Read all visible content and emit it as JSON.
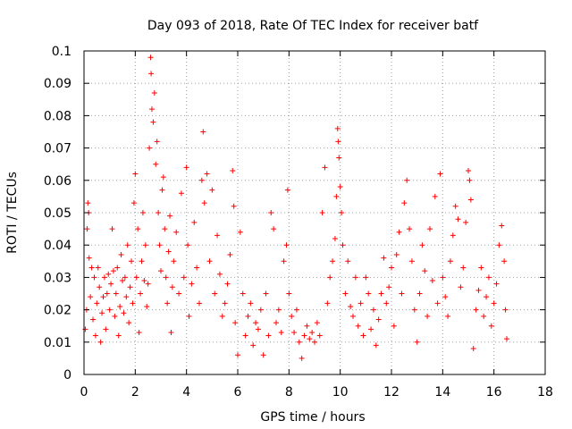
{
  "chart_data": {
    "type": "scatter",
    "title": "Day 093 of 2018, Rate Of TEC Index for receiver batf",
    "xlabel": "GPS time / hours",
    "ylabel": "ROTI / TECUs",
    "xlim": [
      0,
      18
    ],
    "ylim": [
      0,
      0.1
    ],
    "x_ticks": [
      "0",
      "2",
      "4",
      "6",
      "8",
      "10",
      "12",
      "14",
      "16",
      "18"
    ],
    "y_ticks": [
      "0",
      "0.01",
      "0.02",
      "0.03",
      "0.04",
      "0.05",
      "0.06",
      "0.07",
      "0.08",
      "0.09",
      "0.1"
    ],
    "grid": true,
    "marker": "+",
    "series_color": "#ff0000",
    "series": [
      {
        "points": [
          [
            0.05,
            0.014
          ],
          [
            0.1,
            0.02
          ],
          [
            0.12,
            0.045
          ],
          [
            0.15,
            0.053
          ],
          [
            0.18,
            0.05
          ],
          [
            0.2,
            0.036
          ],
          [
            0.25,
            0.024
          ],
          [
            0.3,
            0.033
          ],
          [
            0.35,
            0.017
          ],
          [
            0.4,
            0.03
          ],
          [
            0.45,
            0.012
          ],
          [
            0.5,
            0.022
          ],
          [
            0.55,
            0.033
          ],
          [
            0.6,
            0.027
          ],
          [
            0.65,
            0.01
          ],
          [
            0.7,
            0.019
          ],
          [
            0.75,
            0.024
          ],
          [
            0.8,
            0.03
          ],
          [
            0.85,
            0.014
          ],
          [
            0.9,
            0.025
          ],
          [
            0.95,
            0.031
          ],
          [
            1.0,
            0.02
          ],
          [
            1.05,
            0.028
          ],
          [
            1.1,
            0.045
          ],
          [
            1.15,
            0.032
          ],
          [
            1.2,
            0.018
          ],
          [
            1.25,
            0.025
          ],
          [
            1.3,
            0.033
          ],
          [
            1.35,
            0.012
          ],
          [
            1.4,
            0.021
          ],
          [
            1.45,
            0.037
          ],
          [
            1.5,
            0.029
          ],
          [
            1.55,
            0.019
          ],
          [
            1.6,
            0.03
          ],
          [
            1.65,
            0.024
          ],
          [
            1.7,
            0.04
          ],
          [
            1.75,
            0.016
          ],
          [
            1.8,
            0.027
          ],
          [
            1.85,
            0.035
          ],
          [
            1.9,
            0.022
          ],
          [
            1.95,
            0.053
          ],
          [
            2.0,
            0.062
          ],
          [
            2.05,
            0.03
          ],
          [
            2.1,
            0.045
          ],
          [
            2.15,
            0.013
          ],
          [
            2.2,
            0.025
          ],
          [
            2.25,
            0.035
          ],
          [
            2.3,
            0.05
          ],
          [
            2.35,
            0.029
          ],
          [
            2.4,
            0.04
          ],
          [
            2.45,
            0.021
          ],
          [
            2.5,
            0.028
          ],
          [
            2.55,
            0.07
          ],
          [
            2.6,
            0.098
          ],
          [
            2.62,
            0.093
          ],
          [
            2.65,
            0.082
          ],
          [
            2.7,
            0.078
          ],
          [
            2.75,
            0.087
          ],
          [
            2.8,
            0.065
          ],
          [
            2.85,
            0.072
          ],
          [
            2.9,
            0.05
          ],
          [
            2.95,
            0.04
          ],
          [
            3.0,
            0.032
          ],
          [
            3.05,
            0.057
          ],
          [
            3.1,
            0.061
          ],
          [
            3.15,
            0.045
          ],
          [
            3.2,
            0.03
          ],
          [
            3.25,
            0.022
          ],
          [
            3.3,
            0.038
          ],
          [
            3.35,
            0.049
          ],
          [
            3.4,
            0.013
          ],
          [
            3.45,
            0.027
          ],
          [
            3.5,
            0.035
          ],
          [
            3.6,
            0.044
          ],
          [
            3.7,
            0.025
          ],
          [
            3.8,
            0.056
          ],
          [
            3.9,
            0.03
          ],
          [
            4.0,
            0.064
          ],
          [
            4.05,
            0.04
          ],
          [
            4.1,
            0.018
          ],
          [
            4.2,
            0.028
          ],
          [
            4.3,
            0.047
          ],
          [
            4.4,
            0.033
          ],
          [
            4.5,
            0.022
          ],
          [
            4.6,
            0.06
          ],
          [
            4.65,
            0.075
          ],
          [
            4.7,
            0.053
          ],
          [
            4.8,
            0.062
          ],
          [
            4.9,
            0.035
          ],
          [
            5.0,
            0.057
          ],
          [
            5.1,
            0.025
          ],
          [
            5.2,
            0.043
          ],
          [
            5.3,
            0.031
          ],
          [
            5.4,
            0.018
          ],
          [
            5.5,
            0.022
          ],
          [
            5.6,
            0.028
          ],
          [
            5.7,
            0.037
          ],
          [
            5.8,
            0.063
          ],
          [
            5.85,
            0.052
          ],
          [
            5.9,
            0.016
          ],
          [
            6.0,
            0.006
          ],
          [
            6.1,
            0.044
          ],
          [
            6.2,
            0.025
          ],
          [
            6.3,
            0.012
          ],
          [
            6.4,
            0.018
          ],
          [
            6.5,
            0.022
          ],
          [
            6.6,
            0.009
          ],
          [
            6.7,
            0.016
          ],
          [
            6.8,
            0.014
          ],
          [
            6.9,
            0.02
          ],
          [
            7.0,
            0.006
          ],
          [
            7.1,
            0.025
          ],
          [
            7.2,
            0.012
          ],
          [
            7.3,
            0.05
          ],
          [
            7.4,
            0.045
          ],
          [
            7.5,
            0.016
          ],
          [
            7.6,
            0.02
          ],
          [
            7.7,
            0.013
          ],
          [
            7.8,
            0.035
          ],
          [
            7.9,
            0.04
          ],
          [
            7.95,
            0.057
          ],
          [
            8.0,
            0.025
          ],
          [
            8.1,
            0.018
          ],
          [
            8.2,
            0.013
          ],
          [
            8.3,
            0.02
          ],
          [
            8.4,
            0.01
          ],
          [
            8.5,
            0.005
          ],
          [
            8.6,
            0.012
          ],
          [
            8.7,
            0.015
          ],
          [
            8.8,
            0.011
          ],
          [
            8.9,
            0.013
          ],
          [
            9.0,
            0.01
          ],
          [
            9.1,
            0.016
          ],
          [
            9.2,
            0.012
          ],
          [
            9.3,
            0.05
          ],
          [
            9.4,
            0.064
          ],
          [
            9.5,
            0.022
          ],
          [
            9.6,
            0.03
          ],
          [
            9.7,
            0.035
          ],
          [
            9.8,
            0.042
          ],
          [
            9.85,
            0.055
          ],
          [
            9.9,
            0.076
          ],
          [
            9.92,
            0.072
          ],
          [
            9.95,
            0.067
          ],
          [
            10.0,
            0.058
          ],
          [
            10.05,
            0.05
          ],
          [
            10.1,
            0.04
          ],
          [
            10.2,
            0.025
          ],
          [
            10.3,
            0.035
          ],
          [
            10.4,
            0.021
          ],
          [
            10.5,
            0.018
          ],
          [
            10.6,
            0.03
          ],
          [
            10.7,
            0.015
          ],
          [
            10.8,
            0.022
          ],
          [
            10.9,
            0.012
          ],
          [
            11.0,
            0.03
          ],
          [
            11.1,
            0.025
          ],
          [
            11.2,
            0.014
          ],
          [
            11.3,
            0.02
          ],
          [
            11.4,
            0.009
          ],
          [
            11.5,
            0.017
          ],
          [
            11.6,
            0.025
          ],
          [
            11.7,
            0.036
          ],
          [
            11.8,
            0.022
          ],
          [
            11.9,
            0.027
          ],
          [
            12.0,
            0.033
          ],
          [
            12.1,
            0.015
          ],
          [
            12.2,
            0.037
          ],
          [
            12.3,
            0.044
          ],
          [
            12.4,
            0.025
          ],
          [
            12.5,
            0.053
          ],
          [
            12.6,
            0.06
          ],
          [
            12.7,
            0.045
          ],
          [
            12.8,
            0.035
          ],
          [
            12.9,
            0.02
          ],
          [
            13.0,
            0.01
          ],
          [
            13.1,
            0.025
          ],
          [
            13.2,
            0.04
          ],
          [
            13.3,
            0.032
          ],
          [
            13.4,
            0.018
          ],
          [
            13.5,
            0.045
          ],
          [
            13.6,
            0.029
          ],
          [
            13.7,
            0.055
          ],
          [
            13.8,
            0.022
          ],
          [
            13.9,
            0.062
          ],
          [
            14.0,
            0.03
          ],
          [
            14.1,
            0.024
          ],
          [
            14.2,
            0.018
          ],
          [
            14.3,
            0.035
          ],
          [
            14.4,
            0.043
          ],
          [
            14.5,
            0.052
          ],
          [
            14.6,
            0.048
          ],
          [
            14.7,
            0.027
          ],
          [
            14.8,
            0.033
          ],
          [
            14.9,
            0.047
          ],
          [
            15.0,
            0.063
          ],
          [
            15.05,
            0.06
          ],
          [
            15.1,
            0.054
          ],
          [
            15.2,
            0.008
          ],
          [
            15.3,
            0.02
          ],
          [
            15.4,
            0.026
          ],
          [
            15.5,
            0.033
          ],
          [
            15.6,
            0.018
          ],
          [
            15.7,
            0.024
          ],
          [
            15.8,
            0.03
          ],
          [
            15.9,
            0.015
          ],
          [
            16.0,
            0.022
          ],
          [
            16.1,
            0.028
          ],
          [
            16.2,
            0.04
          ],
          [
            16.3,
            0.046
          ],
          [
            16.4,
            0.035
          ],
          [
            16.45,
            0.02
          ],
          [
            16.5,
            0.011
          ]
        ]
      }
    ]
  }
}
